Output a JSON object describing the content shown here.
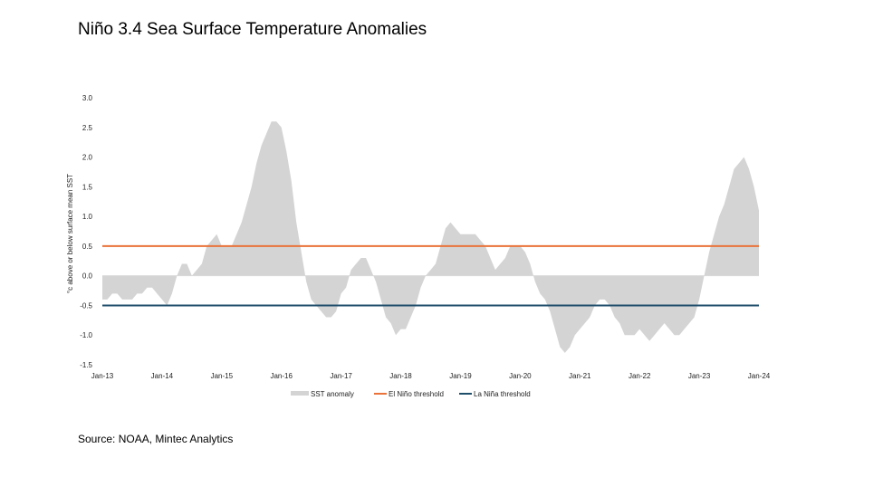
{
  "title": "Niño 3.4 Sea Surface Temperature Anomalies",
  "source": "Source: NOAA, Mintec Analytics",
  "colors": {
    "sst_fill": "#d4d4d4",
    "el_nino": "#e9733a",
    "la_nina": "#1f4e6b"
  },
  "chart_data": {
    "type": "area",
    "ylabel": "°c above or below surface mean SST",
    "ylim": [
      -1.5,
      3.0
    ],
    "yticks": [
      "3.0",
      "2.5",
      "2.0",
      "1.5",
      "1.0",
      "0.5",
      "0.0",
      "-0.5",
      "-1.0",
      "-1.5"
    ],
    "ytick_values": [
      3.0,
      2.5,
      2.0,
      1.5,
      1.0,
      0.5,
      0.0,
      -0.5,
      -1.0,
      -1.5
    ],
    "xticks": [
      "Jan-13",
      "Jan-14",
      "Jan-15",
      "Jan-16",
      "Jan-17",
      "Jan-18",
      "Jan-19",
      "Jan-20",
      "Jan-21",
      "Jan-22",
      "Jan-23",
      "Jan-24"
    ],
    "x_start": "Jan-13",
    "x_end": "Jan-24",
    "grid": false,
    "legend_position": "bottom",
    "series": [
      {
        "name": "SST anomaly",
        "values": [
          -0.4,
          -0.4,
          -0.3,
          -0.3,
          -0.4,
          -0.4,
          -0.4,
          -0.3,
          -0.3,
          -0.2,
          -0.2,
          -0.3,
          -0.4,
          -0.5,
          -0.3,
          0.0,
          0.2,
          0.2,
          0.0,
          0.1,
          0.2,
          0.5,
          0.6,
          0.7,
          0.5,
          0.5,
          0.5,
          0.7,
          0.9,
          1.2,
          1.5,
          1.9,
          2.2,
          2.4,
          2.6,
          2.6,
          2.5,
          2.1,
          1.6,
          0.9,
          0.4,
          -0.1,
          -0.4,
          -0.5,
          -0.6,
          -0.7,
          -0.7,
          -0.6,
          -0.3,
          -0.2,
          0.1,
          0.2,
          0.3,
          0.3,
          0.1,
          -0.1,
          -0.4,
          -0.7,
          -0.8,
          -1.0,
          -0.9,
          -0.9,
          -0.7,
          -0.5,
          -0.2,
          0.0,
          0.1,
          0.2,
          0.5,
          0.8,
          0.9,
          0.8,
          0.7,
          0.7,
          0.7,
          0.7,
          0.6,
          0.5,
          0.3,
          0.1,
          0.2,
          0.3,
          0.5,
          0.5,
          0.5,
          0.4,
          0.2,
          -0.1,
          -0.3,
          -0.4,
          -0.6,
          -0.9,
          -1.2,
          -1.3,
          -1.2,
          -1.0,
          -0.9,
          -0.8,
          -0.7,
          -0.5,
          -0.4,
          -0.4,
          -0.5,
          -0.7,
          -0.8,
          -1.0,
          -1.0,
          -1.0,
          -0.9,
          -1.0,
          -1.1,
          -1.0,
          -0.9,
          -0.8,
          -0.9,
          -1.0,
          -1.0,
          -0.9,
          -0.8,
          -0.7,
          -0.4,
          0.0,
          0.4,
          0.7,
          1.0,
          1.2,
          1.5,
          1.8,
          1.9,
          2.0,
          1.8,
          1.5,
          1.1
        ]
      },
      {
        "name": "El Niño threshold",
        "values": [
          0.5
        ]
      },
      {
        "name": "La Niña threshold",
        "values": [
          -0.5
        ]
      }
    ]
  }
}
